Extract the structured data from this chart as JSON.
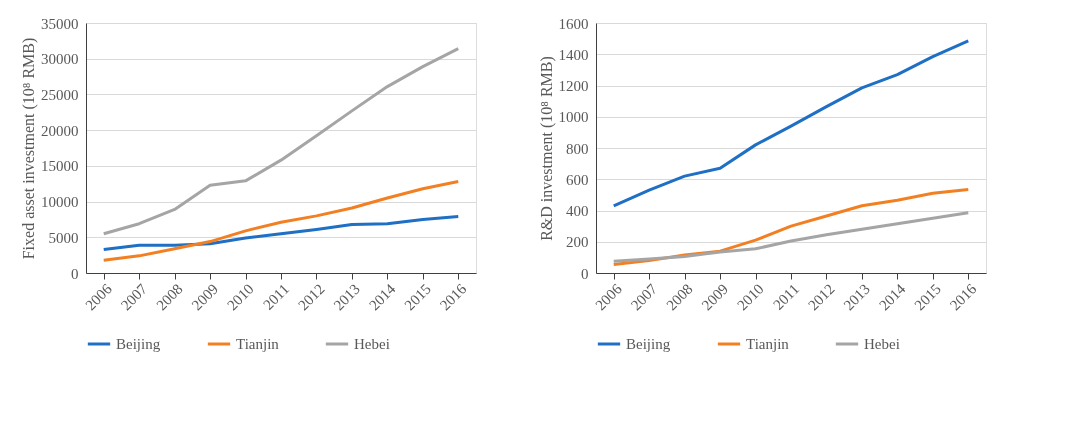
{
  "chart_data": [
    {
      "type": "line",
      "ylabel": "Fixed asset investment (10⁸ RMB)",
      "categories": [
        "2006",
        "2007",
        "2008",
        "2009",
        "2010",
        "2011",
        "2012",
        "2013",
        "2014",
        "2015",
        "2016"
      ],
      "series": [
        {
          "name": "Beijing",
          "color": "#1f6fc5",
          "values": [
            3300,
            3900,
            3900,
            4100,
            4900,
            5500,
            6100,
            6800,
            6900,
            7500,
            7900
          ]
        },
        {
          "name": "Tianjin",
          "color": "#f28023",
          "values": [
            1800,
            2400,
            3400,
            4400,
            5900,
            7100,
            8000,
            9100,
            10500,
            11800,
            12800
          ]
        },
        {
          "name": "Hebei",
          "color": "#a5a5a5",
          "values": [
            5500,
            6900,
            8900,
            12300,
            12900,
            15800,
            19200,
            22700,
            26100,
            28900,
            31400
          ]
        }
      ],
      "ylim": [
        0,
        35000
      ],
      "yticks": [
        0,
        5000,
        10000,
        15000,
        20000,
        25000,
        30000,
        35000
      ],
      "grid": "y",
      "legend": "bottom",
      "marker": "none",
      "line_style": "solid"
    },
    {
      "type": "line",
      "ylabel": "R&D investment (10⁸ RMB)",
      "categories": [
        "2006",
        "2007",
        "2008",
        "2009",
        "2010",
        "2011",
        "2012",
        "2013",
        "2014",
        "2015",
        "2016"
      ],
      "series": [
        {
          "name": "Beijing",
          "color": "#1f6fc5",
          "values": [
            430,
            530,
            620,
            670,
            820,
            940,
            1065,
            1185,
            1270,
            1385,
            1485
          ]
        },
        {
          "name": "Tianjin",
          "color": "#f28023",
          "values": [
            55,
            80,
            115,
            140,
            210,
            300,
            365,
            430,
            465,
            510,
            535
          ]
        },
        {
          "name": "Hebei",
          "color": "#a5a5a5",
          "values": [
            75,
            90,
            105,
            135,
            155,
            205,
            245,
            280,
            315,
            350,
            385
          ]
        }
      ],
      "ylim": [
        0,
        1600
      ],
      "yticks": [
        0,
        200,
        400,
        600,
        800,
        1000,
        1200,
        1400,
        1600
      ],
      "grid": "y",
      "legend": "bottom",
      "marker": "none",
      "line_style": "solid"
    }
  ]
}
